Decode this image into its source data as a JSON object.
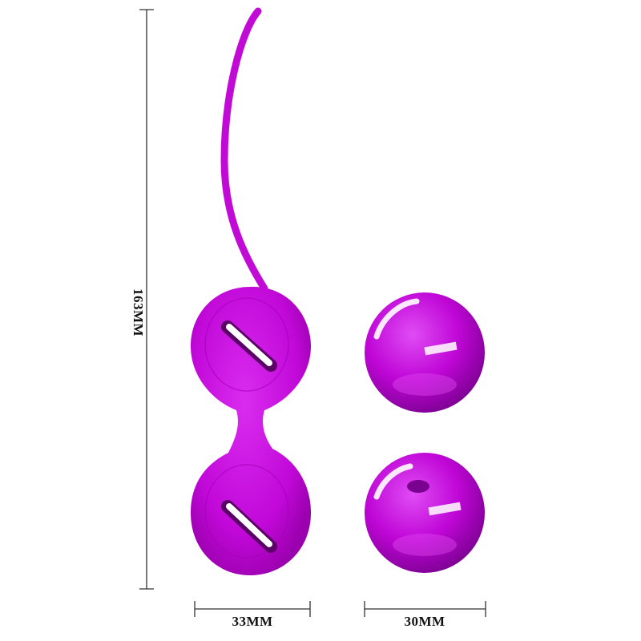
{
  "dimensions": {
    "height": "163MM",
    "device_width": "33MM",
    "ball_width": "30MM"
  },
  "colors": {
    "product": "#c20ad6",
    "product_dark": "#8a0098",
    "dimension_line": "#333333"
  }
}
